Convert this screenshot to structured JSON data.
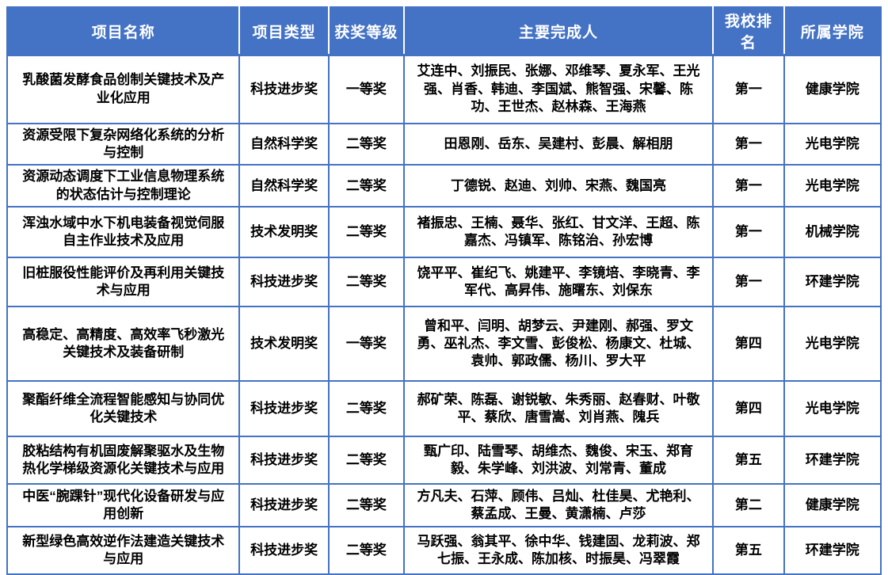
{
  "colors": {
    "header_bg": "#4472C4",
    "border": "#4472C4",
    "header_text": "#FFFFFF",
    "body_text": "#000000"
  },
  "table": {
    "headers": [
      "项目名称",
      "项目类型",
      "获奖等级",
      "主要完成人",
      "我校排名",
      "所属学院"
    ],
    "rows": [
      {
        "name": "乳酸菌发酵食品创制关键技术及产业化应用",
        "type": "科技进步奖",
        "level": "一等奖",
        "contributors": "艾连中、刘振民、张娜、邓维琴、夏永军、王光强、肖香、韩迪、李国斌、熊智强、宋馨、陈功、王世杰、赵林森、王海燕",
        "rank": "第一",
        "college": "健康学院"
      },
      {
        "name": "资源受限下复杂网络化系统的分析与控制",
        "type": "自然科学奖",
        "level": "二等奖",
        "contributors": "田恩刚、岳东、吴建村、彭晨、解相朋",
        "rank": "第一",
        "college": "光电学院"
      },
      {
        "name": "资源动态调度下工业信息物理系统的状态估计与控制理论",
        "type": "自然科学奖",
        "level": "二等奖",
        "contributors": "丁德锐、赵迪、刘帅、宋燕、魏国亮",
        "rank": "第一",
        "college": "光电学院"
      },
      {
        "name": "浑浊水域中水下机电装备视觉伺服自主作业技术及应用",
        "type": "技术发明奖",
        "level": "二等奖",
        "contributors": "褚振忠、王楠、聂华、张红、甘文洋、王超、陈嘉杰、冯镇军、陈铭治、孙宏博",
        "rank": "第一",
        "college": "机械学院"
      },
      {
        "name": "旧桩服役性能评价及再利用关键技术与应用",
        "type": "科技进步奖",
        "level": "二等奖",
        "contributors": "饶平平、崔纪飞、姚建平、李镜培、李晓青、李军代、高昇伟、施曙东、刘保东",
        "rank": "第一",
        "college": "环建学院"
      },
      {
        "name": "高稳定、高精度、高效率飞秒激光关键技术及装备研制",
        "type": "技术发明奖",
        "level": "一等奖",
        "contributors": "曾和平、闫明、胡梦云、尹建刚、郝强、罗文勇、巫礼杰、李文雪、彭俊松、杨康文、杜城、袁帅、郭政儒、杨川、罗大平",
        "rank": "第四",
        "college": "光电学院"
      },
      {
        "name": "聚酯纤维全流程智能感知与协同优化关键技术",
        "type": "科技进步奖",
        "level": "二等奖",
        "contributors": "郝矿荣、陈磊、谢锐敏、朱秀丽、赵春财、叶敬平、蔡欣、唐雪嵩、刘肖燕、隗兵",
        "rank": "第四",
        "college": "光电学院"
      },
      {
        "name": "胶粘结构有机固废解聚驱水及生物热化学梯级资源化关键技术与应用",
        "type": "科技进步奖",
        "level": "二等奖",
        "contributors": "甄广印、陆雪琴、胡维杰、魏俊、宋玉、郑育毅、朱学峰、刘洪波、刘常青、董成",
        "rank": "第五",
        "college": "环建学院"
      },
      {
        "name": "中医“腕踝针”现代化设备研发与应用创新",
        "type": "科技进步奖",
        "level": "二等奖",
        "contributors": "方凡夫、石萍、顾伟、吕灿、杜佳昊、尤艳利、蔡孟成、王曼、黄潇楠、卢莎",
        "rank": "第二",
        "college": "健康学院"
      },
      {
        "name": "新型绿色高效逆作法建造关键技术与应用",
        "type": "科技进步奖",
        "level": "二等奖",
        "contributors": "马跃强、翁其平、徐中华、钱建固、龙莉波、郑七振、王永成、陈加核、时振昊、冯翠霞",
        "rank": "第五",
        "college": "环建学院"
      }
    ]
  }
}
